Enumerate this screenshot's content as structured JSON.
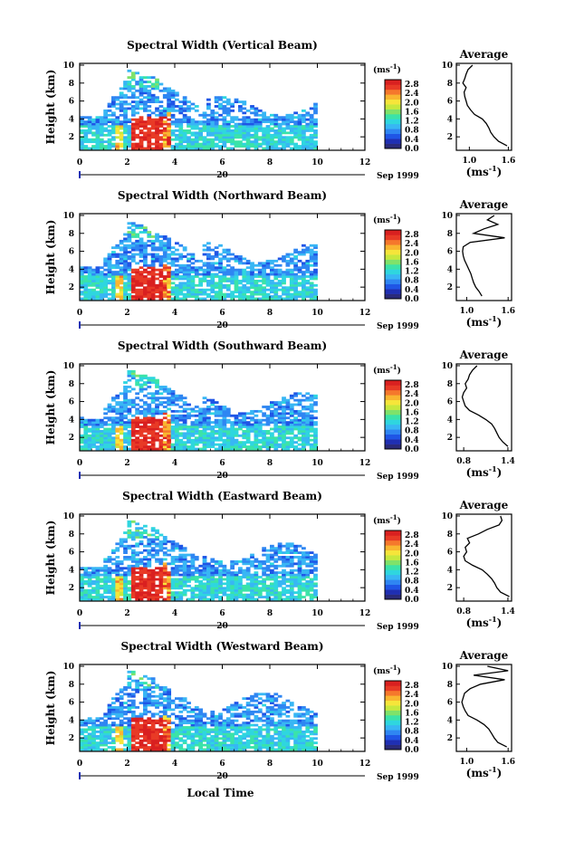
{
  "figure": {
    "xlabel": "Local Time",
    "date_label": "Sep 1999",
    "day_label": "20",
    "ylabel": "Height (km)",
    "colorbar_unit": "(ms",
    "colorbar_unit_sup": "-1",
    "colorbar_unit_close": ")",
    "avg_title": "Average",
    "avg_xlabel": "(ms",
    "avg_xlabel_sup": "-1",
    "avg_xlabel_close": ")"
  },
  "chart_data": [
    {
      "type": "heatmap",
      "title": "Spectral Width (Vertical Beam)",
      "xlabel": "Local Time",
      "ylabel": "Height (km)",
      "xlim": [
        0,
        12
      ],
      "ylim": [
        0.5,
        10.2
      ],
      "xticks": [
        "0",
        "2",
        "4",
        "6",
        "8",
        "10",
        "12"
      ],
      "yticks": [
        "2",
        "4",
        "6",
        "8",
        "10"
      ],
      "colorbar": {
        "unit": "ms-1",
        "ticks": [
          "0.0",
          "0.4",
          "0.8",
          "1.2",
          "1.6",
          "2.0",
          "2.4",
          "2.8"
        ],
        "range": [
          0,
          3.0
        ]
      },
      "average": {
        "xticks": [
          "1.0",
          "1.6"
        ],
        "xlim": [
          0.8,
          1.65
        ],
        "ylim": [
          0.5,
          10.2
        ],
        "heights": [
          1.0,
          1.5,
          2.0,
          2.5,
          3.0,
          3.5,
          4.0,
          4.5,
          5.0,
          5.5,
          6.0,
          6.5,
          7.0,
          7.5,
          8.0,
          8.5,
          9.0,
          9.5,
          10.0
        ],
        "values": [
          1.58,
          1.45,
          1.38,
          1.33,
          1.3,
          1.26,
          1.2,
          1.08,
          1.02,
          0.97,
          0.95,
          0.93,
          0.92,
          0.95,
          0.9,
          0.93,
          0.95,
          0.98,
          1.05
        ]
      }
    },
    {
      "type": "heatmap",
      "title": "Spectral Width (Northward Beam)",
      "xlabel": "Local Time",
      "ylabel": "Height (km)",
      "xlim": [
        0,
        12
      ],
      "ylim": [
        0.5,
        10.2
      ],
      "xticks": [
        "0",
        "2",
        "4",
        "6",
        "8",
        "10",
        "12"
      ],
      "yticks": [
        "2",
        "4",
        "6",
        "8",
        "10"
      ],
      "colorbar": {
        "unit": "ms-1",
        "ticks": [
          "0.0",
          "0.4",
          "0.8",
          "1.2",
          "1.6",
          "2.0",
          "2.4",
          "2.8"
        ],
        "range": [
          0,
          3.0
        ]
      },
      "average": {
        "xticks": [
          "1.0",
          "1.6"
        ],
        "xlim": [
          0.85,
          1.65
        ],
        "ylim": [
          0.5,
          10.2
        ],
        "heights": [
          1.0,
          1.5,
          2.0,
          2.5,
          3.0,
          3.5,
          4.0,
          4.5,
          5.0,
          5.5,
          6.0,
          6.5,
          7.0,
          7.5,
          8.0,
          8.5,
          9.0,
          9.5,
          10.0
        ],
        "values": [
          1.22,
          1.18,
          1.13,
          1.1,
          1.08,
          1.06,
          1.03,
          1.0,
          0.97,
          0.95,
          0.94,
          0.95,
          1.05,
          1.55,
          1.1,
          1.25,
          1.45,
          1.3,
          1.4
        ]
      }
    },
    {
      "type": "heatmap",
      "title": "Spectral Width (Southward Beam)",
      "xlabel": "Local Time",
      "ylabel": "Height (km)",
      "xlim": [
        0,
        12
      ],
      "ylim": [
        0.5,
        10.2
      ],
      "xticks": [
        "0",
        "2",
        "4",
        "6",
        "8",
        "10",
        "12"
      ],
      "yticks": [
        "2",
        "4",
        "6",
        "8",
        "10"
      ],
      "colorbar": {
        "unit": "ms-1",
        "ticks": [
          "0.0",
          "0.4",
          "0.8",
          "1.2",
          "1.6",
          "2.0",
          "2.4",
          "2.8"
        ],
        "range": [
          0,
          3.0
        ]
      },
      "average": {
        "xticks": [
          "0.8",
          "1.4"
        ],
        "xlim": [
          0.7,
          1.45
        ],
        "ylim": [
          0.5,
          10.2
        ],
        "heights": [
          1.0,
          1.5,
          2.0,
          2.5,
          3.0,
          3.5,
          4.0,
          4.5,
          5.0,
          5.5,
          6.0,
          6.5,
          7.0,
          7.5,
          8.0,
          8.5,
          9.0,
          9.5,
          10.0
        ],
        "values": [
          1.4,
          1.33,
          1.28,
          1.25,
          1.22,
          1.18,
          1.1,
          1.0,
          0.88,
          0.82,
          0.8,
          0.78,
          0.8,
          0.84,
          0.82,
          0.86,
          0.88,
          0.92,
          0.98
        ]
      }
    },
    {
      "type": "heatmap",
      "title": "Spectral Width (Eastward Beam)",
      "xlabel": "Local Time",
      "ylabel": "Height (km)",
      "xlim": [
        0,
        12
      ],
      "ylim": [
        0.5,
        10.2
      ],
      "xticks": [
        "0",
        "2",
        "4",
        "6",
        "8",
        "10",
        "12"
      ],
      "yticks": [
        "2",
        "4",
        "6",
        "8",
        "10"
      ],
      "colorbar": {
        "unit": "ms-1",
        "ticks": [
          "0.0",
          "0.4",
          "0.8",
          "1.2",
          "1.6",
          "2.0",
          "2.4",
          "2.8"
        ],
        "range": [
          0,
          3.0
        ]
      },
      "average": {
        "xticks": [
          "0.8",
          "1.4"
        ],
        "xlim": [
          0.7,
          1.45
        ],
        "ylim": [
          0.5,
          10.2
        ],
        "heights": [
          1.0,
          1.5,
          2.0,
          2.5,
          3.0,
          3.5,
          4.0,
          4.5,
          5.0,
          5.5,
          6.0,
          6.5,
          7.0,
          7.5,
          8.0,
          8.5,
          9.0,
          9.5,
          10.0
        ],
        "values": [
          1.42,
          1.3,
          1.25,
          1.22,
          1.18,
          1.12,
          1.05,
          0.92,
          0.82,
          0.8,
          0.84,
          0.82,
          0.88,
          0.85,
          1.0,
          1.12,
          1.28,
          1.32,
          1.3
        ]
      }
    },
    {
      "type": "heatmap",
      "title": "Spectral Width (Westward Beam)",
      "xlabel": "Local Time",
      "ylabel": "Height (km)",
      "xlim": [
        0,
        12
      ],
      "ylim": [
        0.5,
        10.2
      ],
      "xticks": [
        "0",
        "2",
        "4",
        "6",
        "8",
        "10",
        "12"
      ],
      "yticks": [
        "2",
        "4",
        "6",
        "8",
        "10"
      ],
      "colorbar": {
        "unit": "ms-1",
        "ticks": [
          "0.0",
          "0.4",
          "0.8",
          "1.2",
          "1.6",
          "2.0",
          "2.4",
          "2.8"
        ],
        "range": [
          0,
          3.0
        ]
      },
      "average": {
        "xticks": [
          "1.0",
          "1.6"
        ],
        "xlim": [
          0.85,
          1.65
        ],
        "ylim": [
          0.5,
          10.2
        ],
        "heights": [
          1.0,
          1.5,
          2.0,
          2.5,
          3.0,
          3.5,
          4.0,
          4.5,
          5.0,
          5.5,
          6.0,
          6.5,
          7.0,
          7.5,
          8.0,
          8.5,
          9.0,
          9.5,
          10.0
        ],
        "values": [
          1.58,
          1.45,
          1.4,
          1.36,
          1.32,
          1.25,
          1.15,
          1.02,
          0.98,
          0.95,
          0.93,
          0.95,
          0.97,
          1.05,
          1.2,
          1.55,
          1.1,
          1.6,
          1.3
        ]
      }
    }
  ]
}
